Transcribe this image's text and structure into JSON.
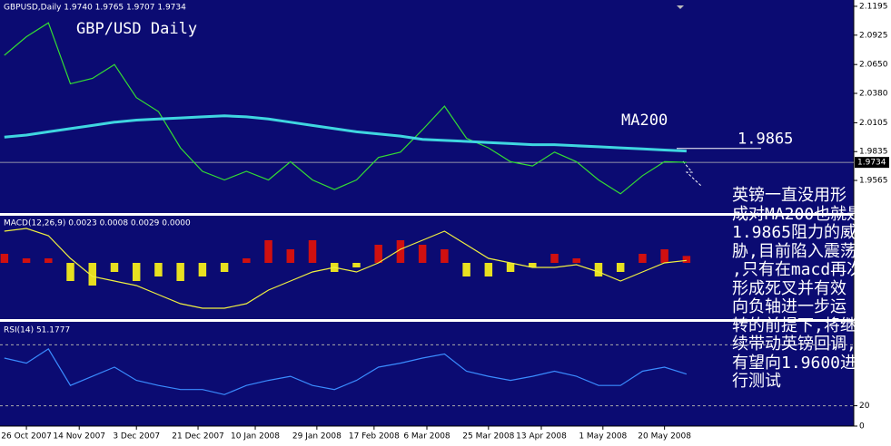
{
  "chart_data": [
    {
      "type": "line",
      "title": "GBP/USD Daily",
      "subtitle": "GBPUSD,Daily 1.9740 1.9765 1.9707 1.9734",
      "x": [
        -5,
        0,
        5,
        10,
        15,
        20,
        25,
        30,
        35,
        40,
        45,
        50,
        55,
        60,
        65,
        70,
        75,
        80,
        85,
        90,
        95,
        100,
        105,
        110,
        115,
        120,
        125,
        130,
        135,
        140,
        145,
        150
      ],
      "xlim": [
        -6,
        188
      ],
      "ylim": [
        1.926,
        2.1254
      ],
      "yticks": [
        1.9565,
        1.9835,
        2.0105,
        {
          "value": 2.038,
          "label": "2.0380"
        },
        {
          "value": 2.065,
          "label": "2.0650"
        },
        2.0925,
        2.1195
      ],
      "last": 1.9734,
      "series": [
        {
          "color": "#33dd33",
          "values": [
            2.0736,
            2.091,
            2.104,
            2.047,
            2.052,
            2.065,
            2.034,
            2.021,
            1.987,
            1.965,
            1.957,
            1.965,
            1.957,
            1.974,
            1.957,
            1.948,
            1.957,
            1.978,
            1.983,
            2.004,
            2.026,
            1.996,
            1.987,
            1.974,
            1.97,
            1.983,
            1.974,
            1.957,
            1.944,
            1.961,
            1.974,
            1.9734
          ]
        },
        {
          "color": "#3fd6e0",
          "values": [
            1.997,
            1.999,
            2.002,
            2.005,
            2.008,
            2.011,
            2.013,
            2.014,
            2.015,
            2.016,
            2.017,
            2.016,
            2.014,
            2.011,
            2.008,
            2.005,
            2.002,
            2.0,
            1.998,
            1.995,
            1.994,
            1.993,
            1.992,
            1.991,
            1.99,
            1.99,
            1.989,
            1.988,
            1.987,
            1.986,
            1.985,
            1.984
          ]
        }
      ],
      "annotations": [
        {
          "text": "MA200"
        },
        {
          "text": "1.9865",
          "value": 1.9865
        }
      ]
    },
    {
      "type": "macd",
      "title": "MACD(12,26,9) 0.0023 0.0008 0.0029 0.0000",
      "x": [
        -5,
        0,
        5,
        10,
        15,
        20,
        25,
        30,
        35,
        40,
        45,
        50,
        55,
        60,
        65,
        70,
        75,
        80,
        85,
        90,
        95,
        100,
        105,
        110,
        115,
        120,
        125,
        130,
        135,
        140,
        145,
        150
      ],
      "xlim": [
        -6,
        188
      ],
      "ylim": [
        -0.0186,
        0.0156
      ],
      "up_color": "#d01010",
      "down_color": "#e8e020",
      "values": [
        0.003,
        0.0015,
        0.0015,
        -0.006,
        -0.0075,
        -0.003,
        -0.006,
        -0.0045,
        -0.006,
        -0.0045,
        -0.003,
        0.0015,
        0.0075,
        0.0045,
        0.0075,
        -0.003,
        -0.0015,
        0.006,
        0.0075,
        0.006,
        0.0045,
        -0.0045,
        -0.0045,
        -0.003,
        -0.0015,
        0.003,
        0.0015,
        -0.0045,
        -0.003,
        0.003,
        0.0045,
        0.0023
      ],
      "series": [
        {
          "color": "#f0f040",
          "values": [
            0.0105,
            0.0114,
            0.009,
            0.0015,
            -0.0045,
            -0.006,
            -0.0075,
            -0.0105,
            -0.0135,
            -0.015,
            -0.015,
            -0.0135,
            -0.009,
            -0.006,
            -0.003,
            -0.0015,
            -0.003,
            0,
            0.0045,
            0.0075,
            0.0105,
            0.006,
            0.0015,
            0,
            -0.0015,
            -0.0015,
            -0.0006,
            -0.003,
            -0.006,
            -0.003,
            0,
            0.0008
          ]
        }
      ]
    },
    {
      "type": "line",
      "title": "RSI(14) 51.1777",
      "x": [
        -5,
        0,
        5,
        10,
        15,
        20,
        25,
        30,
        35,
        40,
        45,
        50,
        55,
        60,
        65,
        70,
        75,
        80,
        85,
        90,
        95,
        100,
        105,
        110,
        115,
        120,
        125,
        130,
        135,
        140,
        145,
        150
      ],
      "xlim": [
        -6,
        188
      ],
      "ylim": [
        0,
        100
      ],
      "yticks": [
        0,
        20
      ],
      "levels": [
        20,
        80
      ],
      "xticks": [
        {
          "value": 0,
          "label": "26 Oct 2007"
        },
        {
          "value": 12,
          "label": "14 Nov 2007"
        },
        {
          "value": 25,
          "label": "3 Dec 2007"
        },
        {
          "value": 39,
          "label": "21 Dec 2007"
        },
        {
          "value": 52,
          "label": "10 Jan 2008"
        },
        {
          "value": 66,
          "label": "29 Jan 2008"
        },
        {
          "value": 79,
          "label": "17 Feb 2008"
        },
        {
          "value": 91,
          "label": "6 Mar 2008"
        },
        {
          "value": 105,
          "label": "25 Mar 2008"
        },
        {
          "value": 117,
          "label": "13 Apr 2008"
        },
        {
          "value": 131,
          "label": "1 May 2008"
        },
        {
          "value": 145,
          "label": "20 May 2008"
        }
      ],
      "series": [
        {
          "color": "#3a8cff",
          "values": [
            67,
            62,
            76,
            40,
            49,
            58,
            45,
            40,
            36,
            36,
            31,
            40,
            45,
            49,
            40,
            36,
            45,
            58,
            62,
            67,
            71,
            54,
            49,
            45,
            49,
            54,
            49,
            40,
            40,
            54,
            58,
            51.1777
          ]
        }
      ]
    }
  ],
  "overlay_text": [
    "英镑一直没用形",
    "成对MA200也就是",
    "1.9865阻力的威",
    "胁,目前陷入震荡",
    ",只有在macd再次",
    "形成死叉并有效",
    "向负轴进一步运",
    "转的前提下,将继",
    "续带动英镑回调,",
    "有望向1.9600进",
    "行测试"
  ]
}
